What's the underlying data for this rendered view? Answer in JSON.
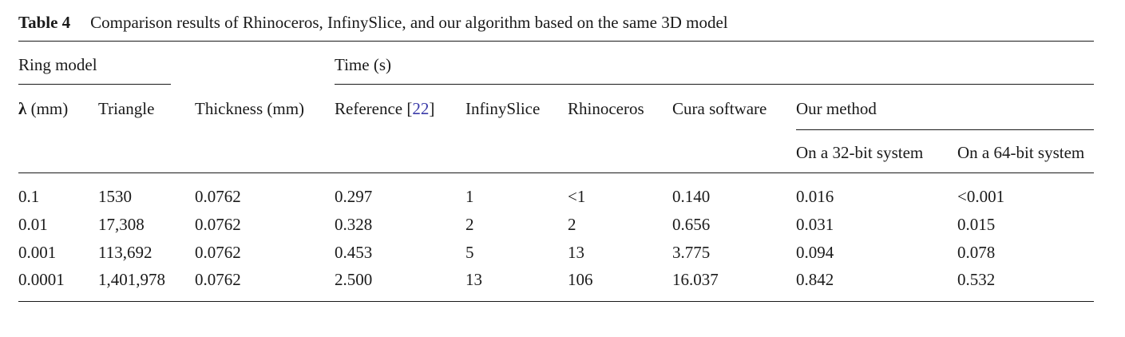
{
  "caption": {
    "label": "Table 4",
    "text": "Comparison results of Rhinoceros, InfinySlice, and our algorithm based on the same 3D model"
  },
  "header": {
    "ring_model": "Ring model",
    "time": "Time (s)",
    "lambda_symbol": "λ",
    "lambda_unit": " (mm)",
    "triangle": "Triangle",
    "thickness": "Thickness (mm)",
    "reference_text": "Reference [",
    "reference_num": "22",
    "reference_close": "]",
    "infinyslice": "InfinySlice",
    "rhinoceros": "Rhinoceros",
    "cura": "Cura software",
    "our_method": "Our method",
    "bit32": "On a 32-bit system",
    "bit64": "On a 64-bit system"
  },
  "rows": [
    [
      "0.1",
      "1530",
      "0.0762",
      "0.297",
      "1",
      "<1",
      "0.140",
      "0.016",
      "<0.001"
    ],
    [
      "0.01",
      "17,308",
      "0.0762",
      "0.328",
      "2",
      "2",
      "0.656",
      "0.031",
      "0.015"
    ],
    [
      "0.001",
      "113,692",
      "0.0762",
      "0.453",
      "5",
      "13",
      "3.775",
      "0.094",
      "0.078"
    ],
    [
      "0.0001",
      "1,401,978",
      "0.0762",
      "2.500",
      "13",
      "106",
      "16.037",
      "0.842",
      "0.532"
    ]
  ]
}
